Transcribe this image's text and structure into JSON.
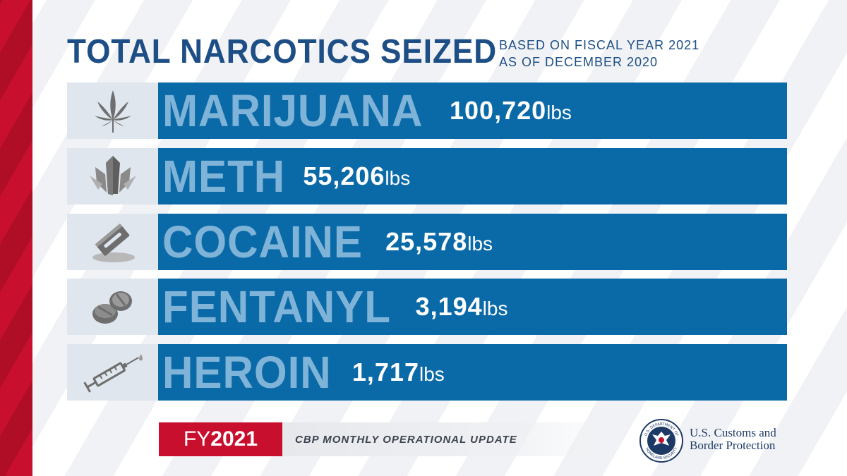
{
  "header": {
    "title": "TOTAL NARCOTICS SEIZED",
    "subtitle_line1": "BASED ON FISCAL YEAR 2021",
    "subtitle_line2": "AS OF DECEMBER 2020"
  },
  "rows": [
    {
      "drug": "MARIJUANA",
      "amount": "100,720",
      "unit": "lbs",
      "icon": "cannabis-leaf-icon"
    },
    {
      "drug": "METH",
      "amount": "55,206",
      "unit": "lbs",
      "icon": "crystal-icon"
    },
    {
      "drug": "COCAINE",
      "amount": "25,578",
      "unit": "lbs",
      "icon": "razor-blade-powder-icon"
    },
    {
      "drug": "FENTANYL",
      "amount": "3,194",
      "unit": "lbs",
      "icon": "pills-icon"
    },
    {
      "drug": "HEROIN",
      "amount": "1,717",
      "unit": "lbs",
      "icon": "syringe-icon"
    }
  ],
  "footer": {
    "fy_prefix": "FY",
    "fy_year": "2021",
    "update_label": "CBP MONTHLY OPERATIONAL UPDATE",
    "agency_line1": "U.S. Customs and",
    "agency_line2": "Border Protection",
    "seal_text_top": "U.S. DEPARTMENT OF",
    "seal_text_bottom": "HOMELAND SECURITY"
  },
  "colors": {
    "brand_blue": "#0a6aa8",
    "title_blue": "#1d4f86",
    "drug_text": "#7fb4d8",
    "accent_red": "#c8102e",
    "icon_gray": "#6e6e6e"
  }
}
